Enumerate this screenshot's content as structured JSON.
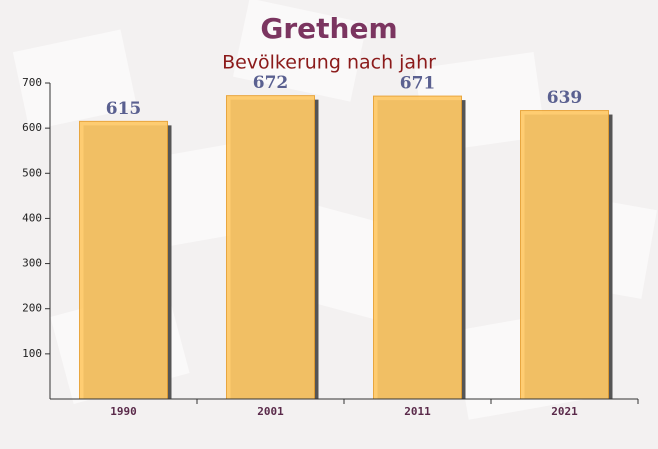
{
  "chart_data": {
    "type": "bar",
    "title": "Grethem",
    "subtitle": "Bevölkerung nach jahr",
    "categories": [
      "1990",
      "2001",
      "2011",
      "2021"
    ],
    "values": [
      615,
      672,
      671,
      639
    ],
    "color": "#ffc966",
    "ylim": [
      0,
      700
    ],
    "yticks": [
      100,
      200,
      300,
      400,
      500,
      600,
      700
    ],
    "grid": false
  }
}
